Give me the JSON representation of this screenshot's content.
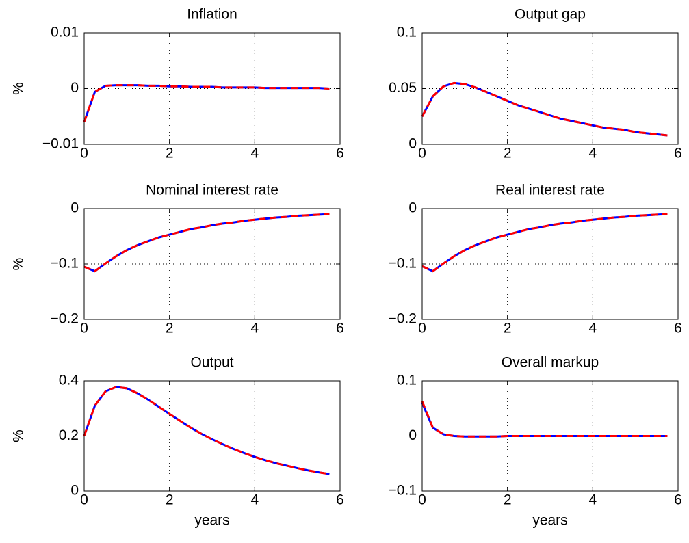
{
  "chart_data": [
    {
      "type": "line",
      "title": "Inflation",
      "ylabel": "%",
      "x": [
        0,
        0.25,
        0.5,
        0.75,
        1,
        1.25,
        1.5,
        1.75,
        2,
        2.25,
        2.5,
        2.75,
        3,
        3.25,
        3.5,
        3.75,
        4,
        4.25,
        4.5,
        4.75,
        5,
        5.25,
        5.5,
        5.75
      ],
      "xlim": [
        0,
        6
      ],
      "xticks": [
        0,
        2,
        4,
        6
      ],
      "ylim": [
        -0.01,
        0.01
      ],
      "yticks": [
        {
          "value": -0.01,
          "label": "−0.01"
        },
        0,
        0.01
      ],
      "grid": true,
      "series": [
        {
          "color": "#0000ff",
          "line_style": "solid",
          "values": [
            -0.006,
            -0.0006,
            0.0005,
            0.0006,
            0.0006,
            0.0006,
            0.0005,
            0.0005,
            0.0004,
            0.0004,
            0.0003,
            0.0003,
            0.0003,
            0.0002,
            0.0002,
            0.0002,
            0.0002,
            0.0001,
            0.0001,
            0.0001,
            0.0001,
            0.0001,
            0.0001,
            0
          ]
        },
        {
          "color": "#ff0000",
          "line_style": "dashed",
          "values": [
            -0.006,
            -0.0006,
            0.0005,
            0.0006,
            0.0006,
            0.0006,
            0.0005,
            0.0005,
            0.0004,
            0.0004,
            0.0003,
            0.0003,
            0.0003,
            0.0002,
            0.0002,
            0.0002,
            0.0002,
            0.0001,
            0.0001,
            0.0001,
            0.0001,
            0.0001,
            0.0001,
            0
          ]
        }
      ]
    },
    {
      "type": "line",
      "title": "Output gap",
      "x": [
        0,
        0.25,
        0.5,
        0.75,
        1,
        1.25,
        1.5,
        1.75,
        2,
        2.25,
        2.5,
        2.75,
        3,
        3.25,
        3.5,
        3.75,
        4,
        4.25,
        4.5,
        4.75,
        5,
        5.25,
        5.5,
        5.75
      ],
      "xlim": [
        0,
        6
      ],
      "xticks": [
        0,
        2,
        4,
        6
      ],
      "ylim": [
        0,
        0.1
      ],
      "yticks": [
        0,
        0.05,
        0.1
      ],
      "grid": true,
      "series": [
        {
          "color": "#0000ff",
          "line_style": "solid",
          "values": [
            0.025,
            0.043,
            0.052,
            0.055,
            0.054,
            0.051,
            0.047,
            0.043,
            0.039,
            0.035,
            0.032,
            0.029,
            0.026,
            0.023,
            0.021,
            0.019,
            0.017,
            0.015,
            0.014,
            0.013,
            0.011,
            0.01,
            0.009,
            0.008
          ]
        },
        {
          "color": "#ff0000",
          "line_style": "dashed",
          "values": [
            0.025,
            0.043,
            0.052,
            0.055,
            0.054,
            0.051,
            0.047,
            0.043,
            0.039,
            0.035,
            0.032,
            0.029,
            0.026,
            0.023,
            0.021,
            0.019,
            0.017,
            0.015,
            0.014,
            0.013,
            0.011,
            0.01,
            0.009,
            0.008
          ]
        }
      ]
    },
    {
      "type": "line",
      "title": "Nominal interest rate",
      "ylabel": "%",
      "x": [
        0,
        0.25,
        0.5,
        0.75,
        1,
        1.25,
        1.5,
        1.75,
        2,
        2.25,
        2.5,
        2.75,
        3,
        3.25,
        3.5,
        3.75,
        4,
        4.25,
        4.5,
        4.75,
        5,
        5.25,
        5.5,
        5.75
      ],
      "xlim": [
        0,
        6
      ],
      "xticks": [
        0,
        2,
        4,
        6
      ],
      "ylim": [
        -0.2,
        0
      ],
      "yticks": [
        {
          "value": -0.2,
          "label": "−0.2"
        },
        {
          "value": -0.1,
          "label": "−0.1"
        },
        0
      ],
      "grid": true,
      "series": [
        {
          "color": "#0000ff",
          "line_style": "solid",
          "values": [
            -0.105,
            -0.113,
            -0.099,
            -0.086,
            -0.075,
            -0.066,
            -0.059,
            -0.052,
            -0.047,
            -0.042,
            -0.037,
            -0.034,
            -0.03,
            -0.027,
            -0.025,
            -0.022,
            -0.02,
            -0.018,
            -0.016,
            -0.015,
            -0.013,
            -0.012,
            -0.011,
            -0.01
          ]
        },
        {
          "color": "#ff0000",
          "line_style": "dashed",
          "values": [
            -0.105,
            -0.113,
            -0.099,
            -0.086,
            -0.075,
            -0.066,
            -0.059,
            -0.052,
            -0.047,
            -0.042,
            -0.037,
            -0.034,
            -0.03,
            -0.027,
            -0.025,
            -0.022,
            -0.02,
            -0.018,
            -0.016,
            -0.015,
            -0.013,
            -0.012,
            -0.011,
            -0.01
          ]
        }
      ]
    },
    {
      "type": "line",
      "title": "Real interest rate",
      "x": [
        0,
        0.25,
        0.5,
        0.75,
        1,
        1.25,
        1.5,
        1.75,
        2,
        2.25,
        2.5,
        2.75,
        3,
        3.25,
        3.5,
        3.75,
        4,
        4.25,
        4.5,
        4.75,
        5,
        5.25,
        5.5,
        5.75
      ],
      "xlim": [
        0,
        6
      ],
      "xticks": [
        0,
        2,
        4,
        6
      ],
      "ylim": [
        -0.2,
        0
      ],
      "yticks": [
        {
          "value": -0.2,
          "label": "−0.2"
        },
        {
          "value": -0.1,
          "label": "−0.1"
        },
        0
      ],
      "grid": true,
      "series": [
        {
          "color": "#0000ff",
          "line_style": "solid",
          "values": [
            -0.104,
            -0.113,
            -0.099,
            -0.086,
            -0.075,
            -0.066,
            -0.059,
            -0.052,
            -0.047,
            -0.042,
            -0.037,
            -0.034,
            -0.03,
            -0.027,
            -0.025,
            -0.022,
            -0.02,
            -0.018,
            -0.016,
            -0.015,
            -0.013,
            -0.012,
            -0.011,
            -0.01
          ]
        },
        {
          "color": "#ff0000",
          "line_style": "dashed",
          "values": [
            -0.104,
            -0.113,
            -0.099,
            -0.086,
            -0.075,
            -0.066,
            -0.059,
            -0.052,
            -0.047,
            -0.042,
            -0.037,
            -0.034,
            -0.03,
            -0.027,
            -0.025,
            -0.022,
            -0.02,
            -0.018,
            -0.016,
            -0.015,
            -0.013,
            -0.012,
            -0.011,
            -0.01
          ]
        }
      ]
    },
    {
      "type": "line",
      "title": "Output",
      "ylabel": "%",
      "xlabel": "years",
      "x": [
        0,
        0.25,
        0.5,
        0.75,
        1,
        1.25,
        1.5,
        1.75,
        2,
        2.25,
        2.5,
        2.75,
        3,
        3.25,
        3.5,
        3.75,
        4,
        4.25,
        4.5,
        4.75,
        5,
        5.25,
        5.5,
        5.75
      ],
      "xlim": [
        0,
        6
      ],
      "xticks": [
        0,
        2,
        4,
        6
      ],
      "ylim": [
        0,
        0.4
      ],
      "yticks": [
        0,
        0.2,
        0.4
      ],
      "grid": true,
      "series": [
        {
          "color": "#0000ff",
          "line_style": "solid",
          "values": [
            0.2,
            0.31,
            0.362,
            0.378,
            0.373,
            0.355,
            0.332,
            0.306,
            0.28,
            0.255,
            0.23,
            0.208,
            0.188,
            0.17,
            0.153,
            0.138,
            0.124,
            0.112,
            0.101,
            0.092,
            0.083,
            0.075,
            0.068,
            0.062
          ]
        },
        {
          "color": "#ff0000",
          "line_style": "dashed",
          "values": [
            0.2,
            0.31,
            0.362,
            0.378,
            0.373,
            0.355,
            0.332,
            0.306,
            0.28,
            0.255,
            0.23,
            0.208,
            0.188,
            0.17,
            0.153,
            0.138,
            0.124,
            0.112,
            0.101,
            0.092,
            0.083,
            0.075,
            0.068,
            0.062
          ]
        }
      ]
    },
    {
      "type": "line",
      "title": "Overall markup",
      "xlabel": "years",
      "x": [
        0,
        0.25,
        0.5,
        0.75,
        1,
        1.25,
        1.5,
        1.75,
        2,
        2.25,
        2.5,
        2.75,
        3,
        3.25,
        3.5,
        3.75,
        4,
        4.25,
        4.5,
        4.75,
        5,
        5.25,
        5.5,
        5.75
      ],
      "xlim": [
        0,
        6
      ],
      "xticks": [
        0,
        2,
        4,
        6
      ],
      "ylim": [
        -0.1,
        0.1
      ],
      "yticks": [
        {
          "value": -0.1,
          "label": "−0.1"
        },
        0,
        0.1
      ],
      "grid": true,
      "series": [
        {
          "color": "#0000ff",
          "line_style": "solid",
          "values": [
            0.06,
            0.015,
            0.003,
            0,
            -0.001,
            -0.001,
            -0.001,
            -0.001,
            0,
            0,
            0,
            0,
            0,
            0,
            0,
            0,
            0,
            0,
            0,
            0,
            0,
            0,
            0,
            0
          ]
        },
        {
          "color": "#ff0000",
          "line_style": "dashed",
          "values": [
            0.063,
            0.015,
            0.003,
            0,
            -0.001,
            -0.001,
            -0.001,
            -0.001,
            0,
            0,
            0,
            0,
            0,
            0,
            0,
            0,
            0,
            0,
            0,
            0,
            0,
            0,
            0,
            0
          ]
        }
      ]
    }
  ]
}
